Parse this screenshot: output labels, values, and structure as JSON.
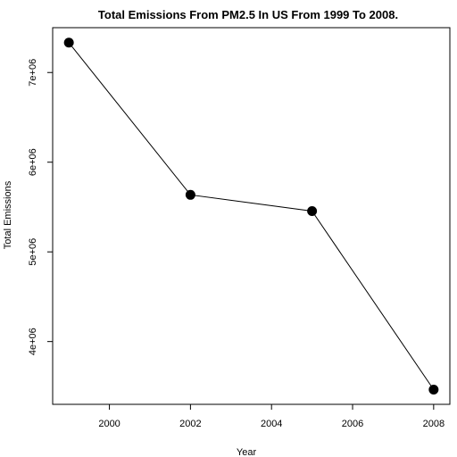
{
  "chart_data": {
    "type": "line",
    "title": "Total Emissions From PM2.5 In US From 1999 To 2008.",
    "xlabel": "Year",
    "ylabel": "Total Emissions",
    "x": [
      1999,
      2002,
      2005,
      2008
    ],
    "series": [
      {
        "values": [
          7332967,
          5635780,
          5454703,
          3464206
        ]
      }
    ],
    "xlim": [
      1998.6,
      2008.4
    ],
    "ylim": [
      3300000,
      7500000
    ],
    "xticks": [
      2000,
      2002,
      2004,
      2006,
      2008
    ],
    "xtick_labels": [
      "2000",
      "2002",
      "2004",
      "2006",
      "2008"
    ],
    "yticks": [
      4000000,
      5000000,
      6000000,
      7000000
    ],
    "ytick_labels": [
      "4e+06",
      "5e+06",
      "6e+06",
      "7e+06"
    ],
    "grid": false,
    "line_color": "#000000",
    "marker": "filled-circle"
  }
}
